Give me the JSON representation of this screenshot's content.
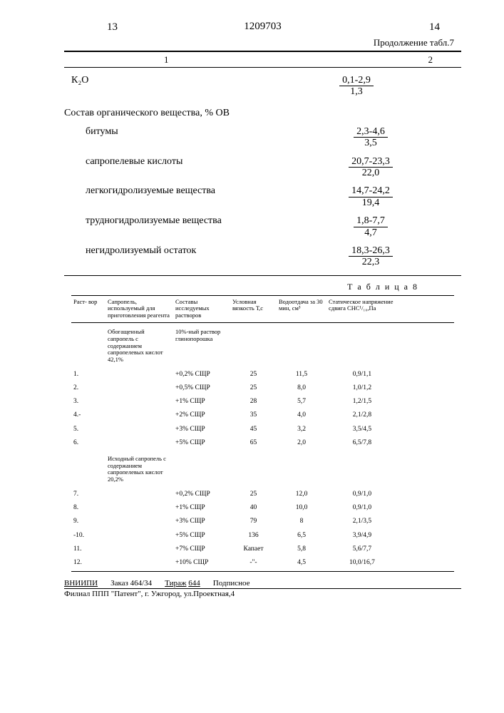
{
  "page_left": "13",
  "page_right": "14",
  "patent_number": "1209703",
  "table7_continuation": "Продолжение табл.7",
  "col_1": "1",
  "col_2": "2",
  "table7": {
    "k2o": {
      "label": "К₂О",
      "num": "0,1-2,9",
      "den": "1,3"
    },
    "section": "Состав органического вещества, % ОВ",
    "rows": [
      {
        "label": "битумы",
        "num": "2,3-4,6",
        "den": "3,5"
      },
      {
        "label": "сапропелевые кислоты",
        "num": "20,7-23,3",
        "den": "22,0"
      },
      {
        "label": "легкогидролизуемые вещества",
        "num": "14,7-24,2",
        "den": "19,4"
      },
      {
        "label": "трудногидролизуемые вещества",
        "num": "1,8-7,7",
        "den": "4,7"
      },
      {
        "label": "негидролизуемый остаток",
        "num": "18,3-26,3",
        "den": "22,3"
      }
    ]
  },
  "table8_label": "Т а б л и ц а  8",
  "table8": {
    "headers": {
      "c1": "Раст-\nвор",
      "c2": "Сапропель, используемый для приготовления реагента",
      "c3": "Составы исследуемых растворов",
      "c4": "Условная вязкость Т,с",
      "c5": "Водоотдача за 30 мин, см³",
      "c6": "Статическое напряжение сдвига СНС¹/₁₀,Па"
    },
    "group1": {
      "c2": "Обогащенный сапропель с содержанием сапропелевых кислот 42,1%",
      "c3": "10%-ный раствор глинопорошка"
    },
    "rows1": [
      {
        "n": "1.",
        "c3": "+0,2% СЩР",
        "c4": "25",
        "c5": "11,5",
        "c6": "0,9/1,1"
      },
      {
        "n": "2.",
        "c3": "+0,5% СЩР",
        "c4": "25",
        "c5": "8,0",
        "c6": "1,0/1,2"
      },
      {
        "n": "3.",
        "c3": "+1% СЩР",
        "c4": "28",
        "c5": "5,7",
        "c6": "1,2/1,5"
      },
      {
        "n": "4.-",
        "c3": "+2% СЩР",
        "c4": "35",
        "c5": "4,0",
        "c6": "2,1/2,8"
      },
      {
        "n": "5.",
        "c3": "+3% СЩР",
        "c4": "45",
        "c5": "3,2",
        "c6": "3,5/4,5"
      },
      {
        "n": "6.",
        "c3": "+5% СЩР",
        "c4": "65",
        "c5": "2,0",
        "c6": "6,5/7,8"
      }
    ],
    "group2": {
      "c2": "Исходный сапропель с содержанием сапропелевых кислот 20,2%"
    },
    "rows2": [
      {
        "n": "7.",
        "c3": "+0,2% СЩР",
        "c4": "25",
        "c5": "12,0",
        "c6": "0,9/1,0"
      },
      {
        "n": "8.",
        "c3": "+1% СЩР",
        "c4": "40",
        "c5": "10,0",
        "c6": "0,9/1,0"
      },
      {
        "n": "9.",
        "c3": "+3% СЩР",
        "c4": "79",
        "c5": "8",
        "c6": "2,1/3,5"
      },
      {
        "n": "-10.",
        "c3": "+5% СЩР",
        "c4": "136",
        "c5": "6,5",
        "c6": "3,9/4,9"
      },
      {
        "n": "11.",
        "c3": "+7% СЩР",
        "c4": "Капает",
        "c5": "5,8",
        "c6": "5,6/7,7"
      },
      {
        "n": "12.",
        "c3": "+10% СЩР",
        "c4": "-\"-",
        "c5": "4,5",
        "c6": "10,0/16,7"
      }
    ]
  },
  "footer": {
    "org": "ВНИИПИ",
    "order": "Заказ 464/34",
    "tirage_label": "Тираж",
    "tirage": "644",
    "sub": "Подписное",
    "line2": "Филиал ППП \"Патент\", г. Ужгород, ул.Проектная,4"
  }
}
